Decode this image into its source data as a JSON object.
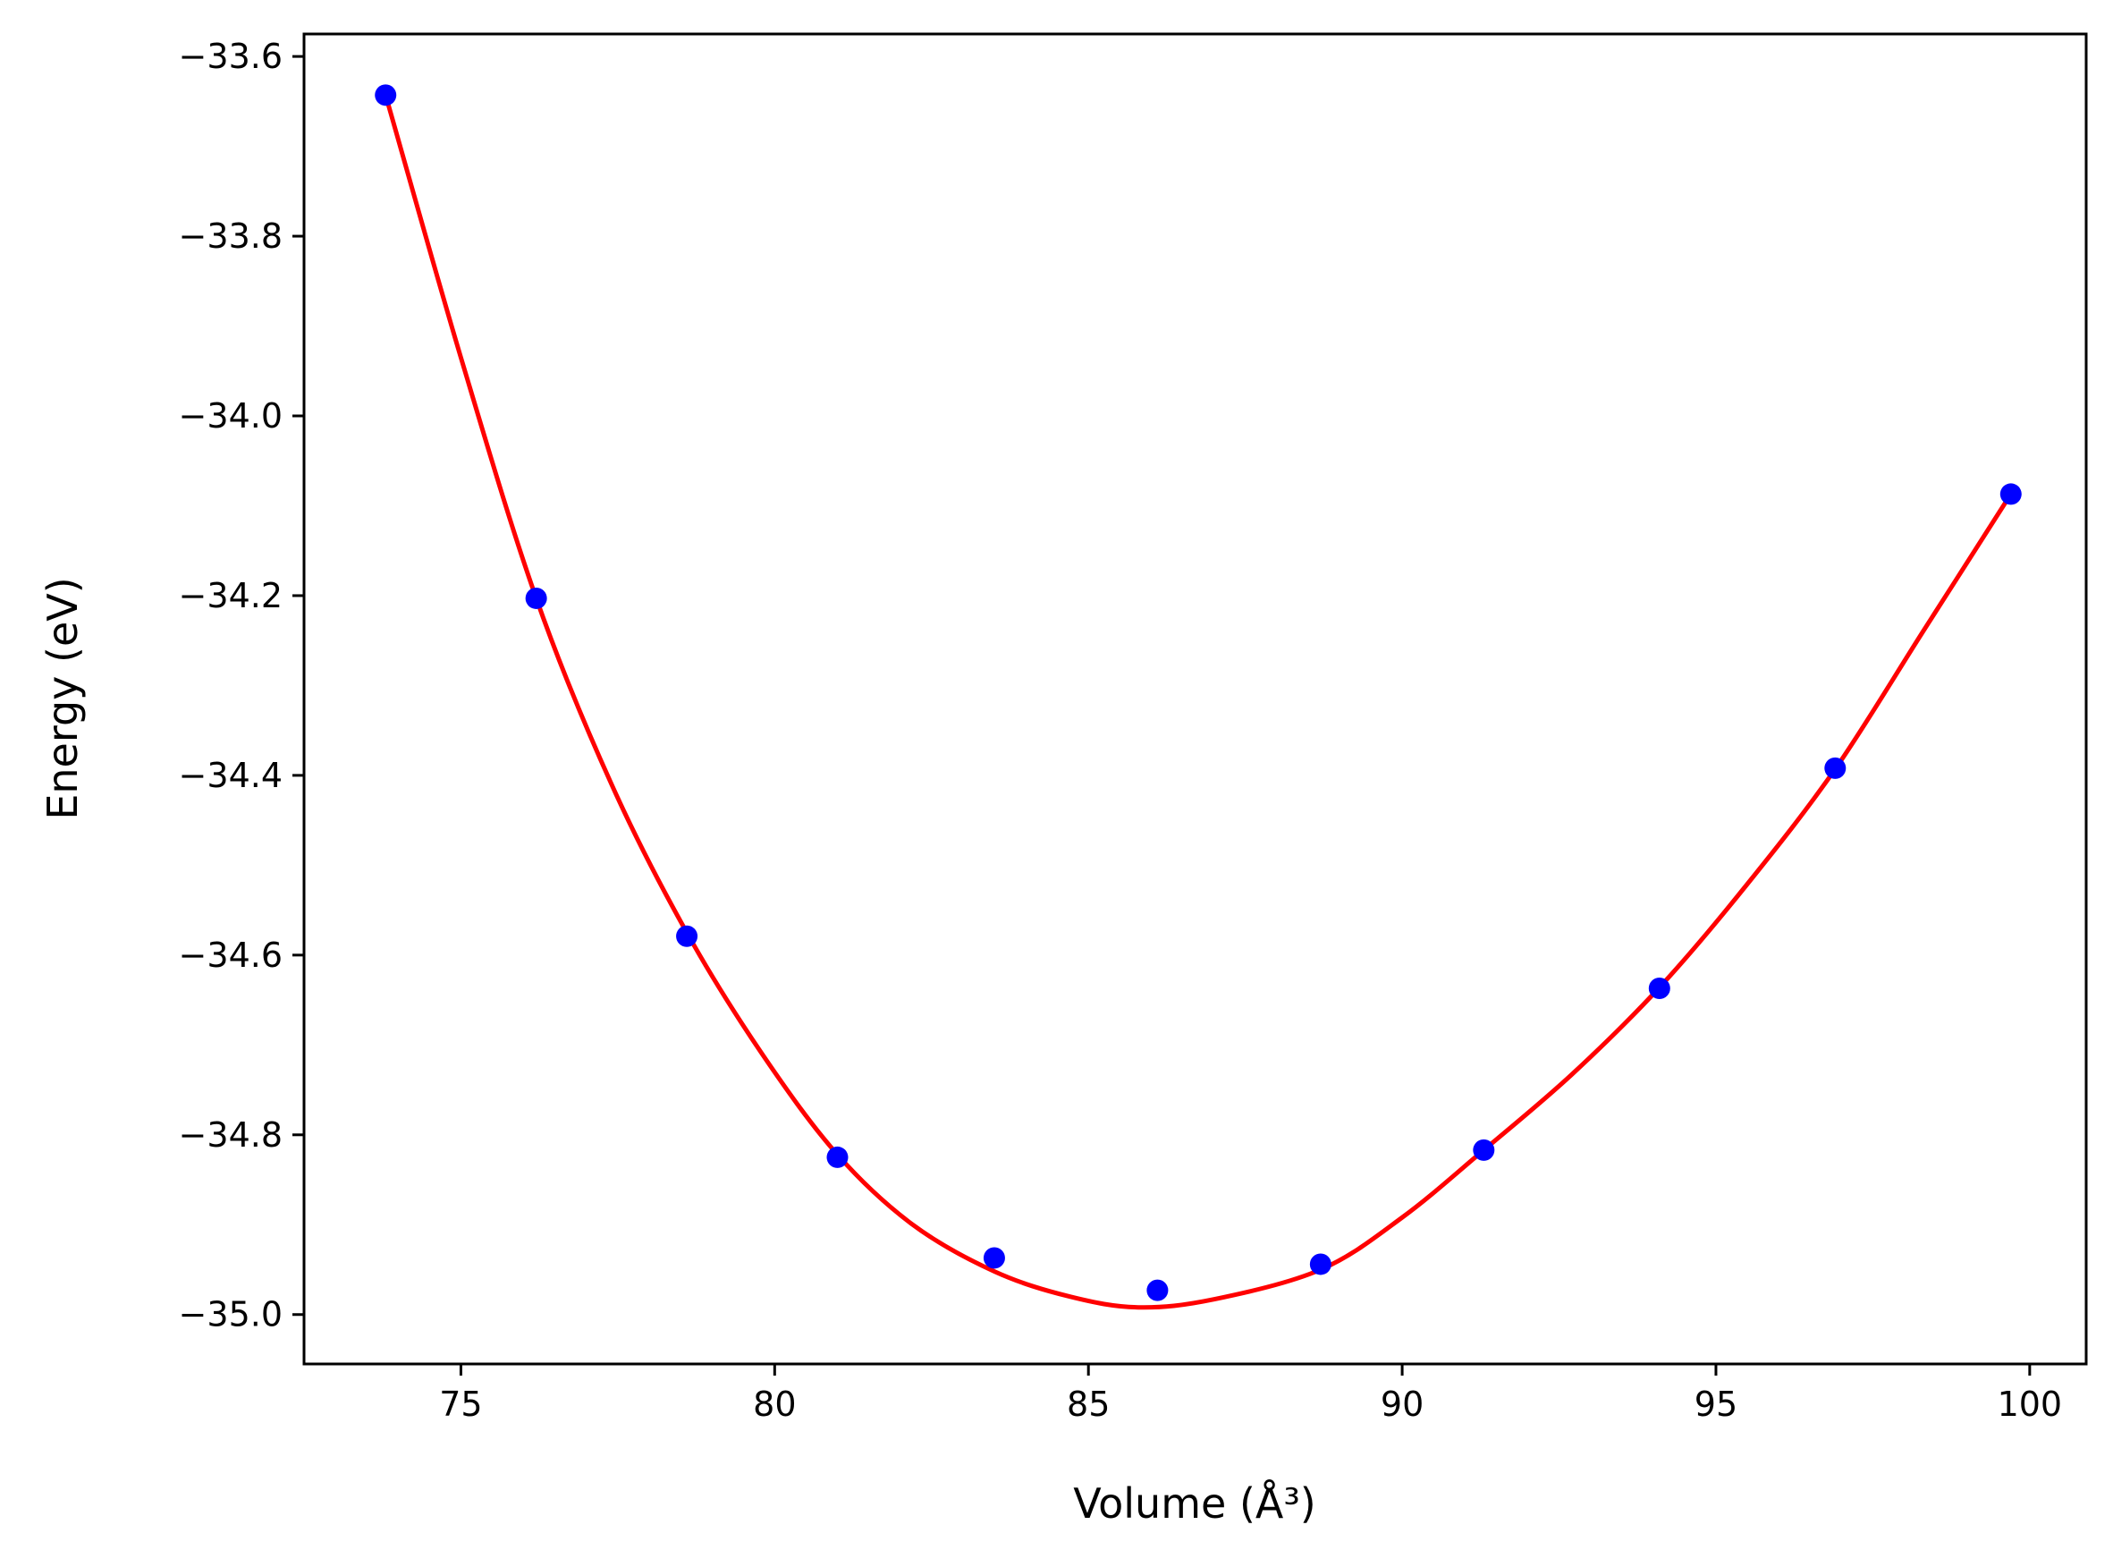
{
  "chart_data": {
    "type": "scatter",
    "xlabel": "Volume (Å³)",
    "ylabel": "Energy (eV)",
    "xlim": [
      72.5,
      100.9
    ],
    "ylim": [
      -35.055,
      -33.575
    ],
    "xticks": [
      75,
      80,
      85,
      90,
      95,
      100
    ],
    "xtick_labels": [
      "75",
      "80",
      "85",
      "90",
      "95",
      "100"
    ],
    "yticks": [
      -35.0,
      -34.8,
      -34.6,
      -34.4,
      -34.2,
      -34.0,
      -33.8,
      -33.6
    ],
    "ytick_labels": [
      "−35.0",
      "−34.8",
      "−34.6",
      "−34.4",
      "−34.2",
      "−34.0",
      "−33.8",
      "−33.6"
    ],
    "grid": false,
    "series": [
      {
        "kind": "points",
        "color": "#0000ff",
        "x": [
          73.8,
          76.2,
          78.6,
          81.0,
          83.5,
          86.1,
          88.7,
          91.3,
          94.1,
          96.9,
          99.7
        ],
        "y": [
          -33.643,
          -34.203,
          -34.579,
          -34.825,
          -34.937,
          -34.973,
          -34.944,
          -34.817,
          -34.637,
          -34.392,
          -34.087
        ]
      },
      {
        "kind": "fit-curve",
        "color": "#ff0000",
        "x": [
          73.8,
          75.0,
          76.2,
          77.4,
          78.6,
          79.8,
          81.0,
          82.2,
          83.5,
          84.7,
          85.8,
          87.0,
          88.7,
          90.0,
          91.3,
          92.7,
          94.1,
          95.5,
          96.9,
          98.3,
          99.7
        ],
        "y": [
          -33.643,
          -33.935,
          -34.203,
          -34.41,
          -34.575,
          -34.71,
          -34.822,
          -34.9,
          -34.952,
          -34.98,
          -34.992,
          -34.983,
          -34.95,
          -34.892,
          -34.817,
          -34.733,
          -34.636,
          -34.521,
          -34.393,
          -34.24,
          -34.087
        ]
      }
    ]
  }
}
